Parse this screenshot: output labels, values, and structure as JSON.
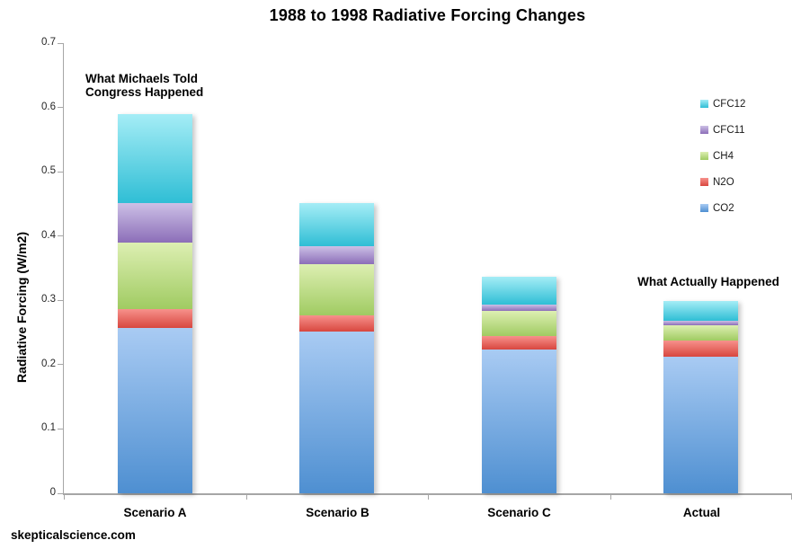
{
  "source": {
    "label": "skepticalscience.com"
  },
  "chart_data": {
    "type": "bar",
    "stacked": true,
    "title": "1988 to 1998 Radiative Forcing Changes",
    "xlabel": "",
    "ylabel": "Radiative Forcing (W/m2)",
    "ylim": [
      0,
      0.7
    ],
    "ytick_step": 0.1,
    "ytick_labels": [
      "0",
      "0.1",
      "0.2",
      "0.3",
      "0.4",
      "0.5",
      "0.6",
      "0.7"
    ],
    "grid": false,
    "categories": [
      "Scenario A",
      "Scenario B",
      "Scenario C",
      "Actual"
    ],
    "series": [
      {
        "name": "CO2",
        "values": [
          0.257,
          0.252,
          0.223,
          0.213
        ],
        "color_top": "#A9CBF3",
        "color_bottom": "#4E8FD1"
      },
      {
        "name": "N2O",
        "values": [
          0.029,
          0.025,
          0.021,
          0.024
        ],
        "color_top": "#F7918C",
        "color_bottom": "#D8473F"
      },
      {
        "name": "CH4",
        "values": [
          0.104,
          0.079,
          0.04,
          0.025
        ],
        "color_top": "#DDEFB2",
        "color_bottom": "#A0CB62"
      },
      {
        "name": "CFC11",
        "values": [
          0.062,
          0.028,
          0.01,
          0.006
        ],
        "color_top": "#CCC0E6",
        "color_bottom": "#8C6EB8"
      },
      {
        "name": "CFC12",
        "values": [
          0.137,
          0.068,
          0.043,
          0.031
        ],
        "color_top": "#A5EDF6",
        "color_bottom": "#2FBED5"
      }
    ],
    "stack_totals": [
      0.589,
      0.452,
      0.337,
      0.299
    ],
    "legend": {
      "position": "right",
      "order_top_to_bottom": [
        "CFC12",
        "CFC11",
        "CH4",
        "N2O",
        "CO2"
      ]
    },
    "annotations": [
      {
        "target": "Scenario A",
        "lines": [
          "What Michaels Told",
          "Congress Happened"
        ]
      },
      {
        "target": "Actual",
        "lines": [
          "What Actually Happened"
        ]
      }
    ]
  }
}
